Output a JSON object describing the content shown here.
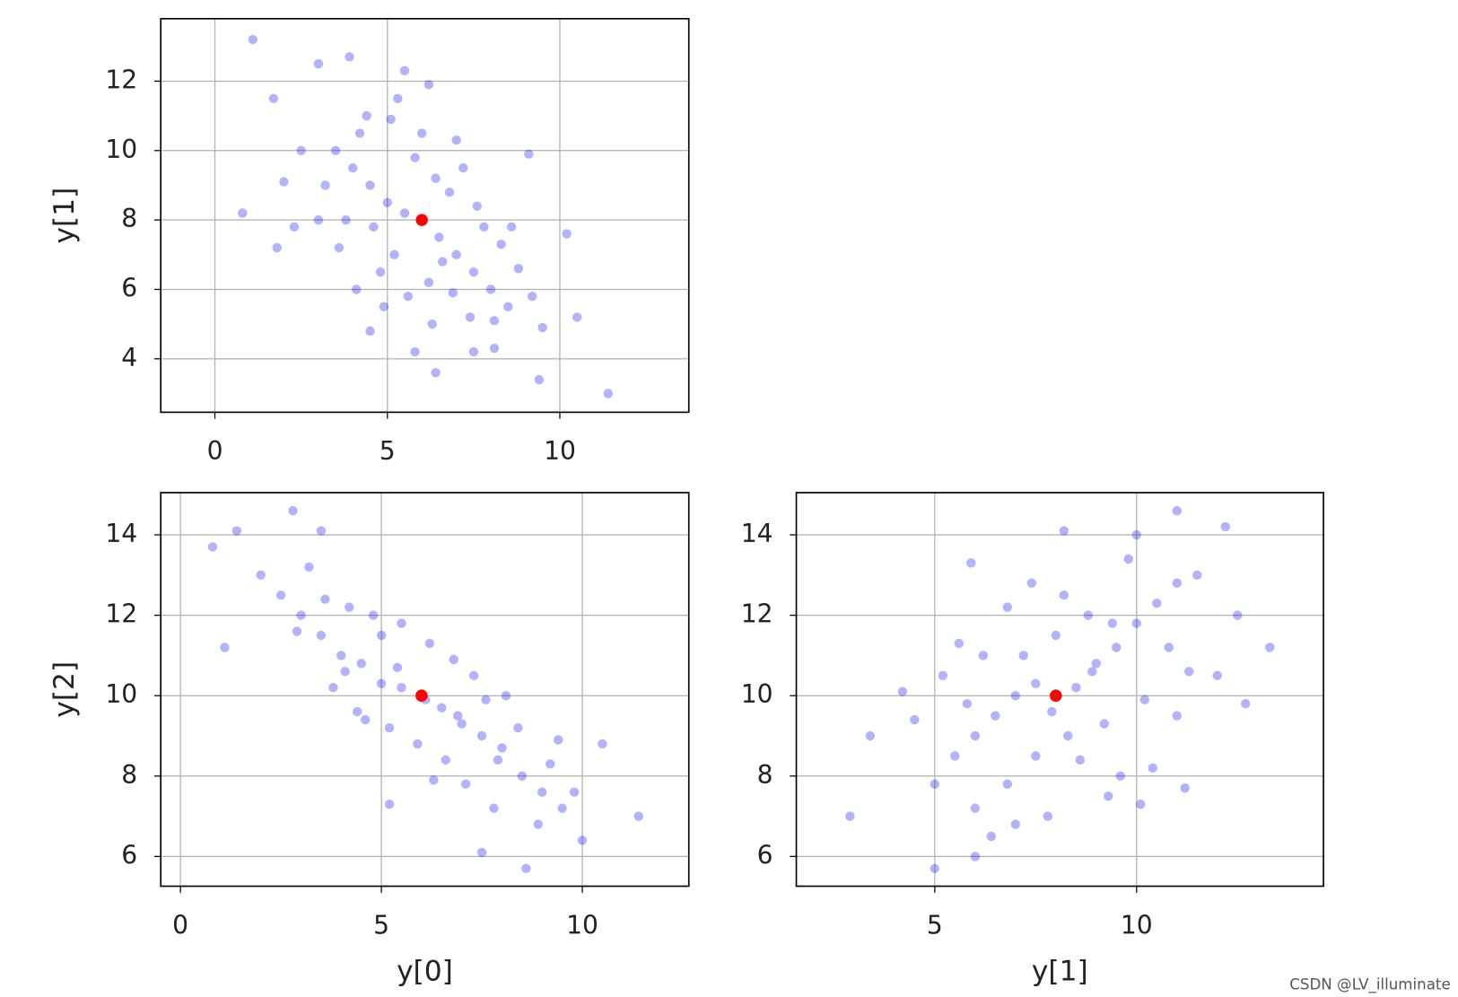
{
  "chart_data": [
    {
      "type": "scatter",
      "ylabel": "y[1]",
      "xlim": [
        -1.57,
        13.74
      ],
      "ylim": [
        2.46,
        13.8
      ],
      "xticks": [
        0,
        5,
        10
      ],
      "yticks": [
        4,
        6,
        8,
        10,
        12
      ],
      "grid": true,
      "series": [
        {
          "color": "#0000ff",
          "alpha": 0.3,
          "x": [
            1.1,
            0.8,
            11.4,
            9.4,
            6.4,
            3.9,
            6.2,
            5.5,
            1.7,
            10.2,
            10.5,
            2.0,
            1.8,
            4.5,
            5.8,
            7.5,
            8.1,
            9.1,
            3.0,
            3.5,
            4.0,
            4.5,
            5.0,
            5.5,
            6.5,
            7.0,
            7.5,
            8.0,
            8.5,
            4.2,
            3.8,
            5.2,
            6.8,
            7.2,
            5.8,
            4.8,
            6.2,
            7.8,
            8.3,
            3.2,
            4.4,
            5.1,
            6.9,
            7.4,
            8.8,
            9.2,
            5.6,
            6.4,
            3.0,
            2.5,
            4.6,
            6.6,
            7.6,
            8.1,
            9.5,
            3.6,
            5.3,
            6.0,
            4.1,
            7.0,
            8.6,
            2.3,
            4.9,
            6.3
          ],
          "values": [
            13.2,
            8.2,
            3.0,
            3.4,
            3.6,
            12.7,
            11.9,
            12.3,
            11.5,
            7.6,
            5.2,
            9.1,
            7.2,
            4.8,
            4.2,
            4.2,
            4.3,
            9.9,
            12.5,
            10.0,
            9.5,
            9.0,
            8.5,
            8.2,
            7.5,
            7.0,
            6.5,
            6.0,
            5.5,
            10.5,
            8.0,
            7.0,
            8.8,
            9.5,
            9.8,
            6.5,
            6.2,
            7.8,
            7.3,
            9.0,
            11.0,
            10.9,
            5.9,
            5.2,
            6.6,
            5.8,
            5.8,
            9.2,
            8.0,
            10.0,
            7.8,
            6.8,
            8.4,
            5.1,
            4.9,
            7.2,
            11.5,
            10.5,
            6.0,
            10.3,
            7.8,
            7.8,
            5.5,
            5.0
          ]
        },
        {
          "color": "#ff0000",
          "x": [
            6
          ],
          "values": [
            8
          ]
        }
      ]
    },
    {
      "type": "scatter",
      "xlabel": "y[0]",
      "ylabel": "y[2]",
      "xlim": [
        -0.49,
        12.65
      ],
      "ylim": [
        5.26,
        15.05
      ],
      "xticks": [
        0,
        5,
        10
      ],
      "yticks": [
        6,
        8,
        10,
        12,
        14
      ],
      "grid": true,
      "series": [
        {
          "color": "#0000ff",
          "alpha": 0.3,
          "x": [
            0.8,
            1.4,
            2.8,
            1.1,
            11.4,
            10.5,
            8.6,
            5.2,
            10.0,
            7.5,
            3.5,
            9.4,
            2.0,
            2.5,
            3.0,
            3.5,
            4.0,
            4.5,
            5.0,
            5.5,
            6.5,
            7.0,
            7.5,
            8.0,
            8.5,
            9.0,
            9.5,
            3.2,
            4.2,
            4.8,
            5.5,
            6.2,
            6.8,
            7.3,
            8.1,
            3.8,
            4.4,
            5.2,
            5.9,
            6.6,
            7.1,
            7.8,
            8.9,
            9.8,
            4.1,
            5.4,
            6.1,
            6.9,
            7.6,
            8.4,
            2.9,
            3.6,
            6.3,
            7.9,
            5.0,
            4.6,
            9.2
          ],
          "values": [
            13.7,
            14.1,
            14.6,
            11.2,
            7.0,
            8.8,
            5.7,
            7.3,
            6.4,
            6.1,
            14.1,
            8.9,
            13.0,
            12.5,
            12.0,
            11.5,
            11.0,
            10.8,
            10.3,
            10.2,
            9.7,
            9.3,
            9.0,
            8.7,
            8.0,
            7.6,
            7.2,
            13.2,
            12.2,
            12.0,
            11.8,
            11.3,
            10.9,
            10.5,
            10.0,
            10.2,
            9.6,
            9.2,
            8.8,
            8.4,
            7.8,
            7.2,
            6.8,
            7.6,
            10.6,
            10.7,
            9.9,
            9.5,
            9.9,
            9.2,
            11.6,
            12.4,
            7.9,
            8.4,
            11.5,
            9.4,
            8.3
          ]
        },
        {
          "color": "#ff0000",
          "x": [
            6
          ],
          "values": [
            10
          ]
        }
      ]
    },
    {
      "type": "scatter",
      "xlabel": "y[1]",
      "xlim": [
        1.57,
        14.63
      ],
      "ylim": [
        5.26,
        15.05
      ],
      "xticks": [
        5,
        10
      ],
      "yticks": [
        6,
        8,
        10,
        12,
        14
      ],
      "grid": true,
      "series": [
        {
          "color": "#0000ff",
          "alpha": 0.3,
          "x": [
            2.9,
            3.4,
            4.2,
            5.0,
            5.9,
            13.3,
            11.0,
            12.2,
            8.2,
            10.0,
            12.7,
            11.2,
            6.0,
            10.1,
            9.3,
            5.0,
            5.5,
            6.0,
            6.5,
            7.0,
            7.5,
            8.5,
            9.0,
            9.5,
            10.0,
            10.5,
            11.0,
            6.2,
            6.8,
            7.4,
            8.0,
            8.8,
            9.8,
            11.5,
            5.2,
            6.0,
            6.8,
            7.5,
            8.3,
            9.2,
            10.2,
            11.3,
            12.0,
            5.8,
            7.2,
            8.6,
            9.6,
            10.4,
            7.0,
            7.8,
            6.4,
            8.2,
            9.4,
            10.8,
            12.5,
            4.5,
            5.6,
            7.9,
            8.9,
            11.0
          ],
          "values": [
            7.0,
            9.0,
            10.1,
            5.7,
            13.3,
            11.2,
            14.6,
            14.2,
            14.1,
            14.0,
            9.8,
            7.7,
            6.0,
            7.3,
            7.5,
            7.8,
            8.5,
            9.0,
            9.5,
            10.0,
            10.3,
            10.2,
            10.8,
            11.2,
            11.8,
            12.3,
            12.8,
            11.0,
            12.2,
            12.8,
            11.5,
            12.0,
            13.4,
            13.0,
            10.5,
            7.2,
            7.8,
            8.5,
            9.0,
            9.3,
            9.9,
            10.6,
            10.5,
            9.8,
            11.0,
            8.4,
            8.0,
            8.2,
            6.8,
            7.0,
            6.5,
            12.5,
            11.8,
            11.2,
            12.0,
            9.4,
            11.3,
            9.6,
            10.6,
            9.5
          ]
        },
        {
          "color": "#ff0000",
          "x": [
            8
          ],
          "values": [
            10
          ]
        }
      ]
    }
  ],
  "watermark": "CSDN @LV_illuminate"
}
